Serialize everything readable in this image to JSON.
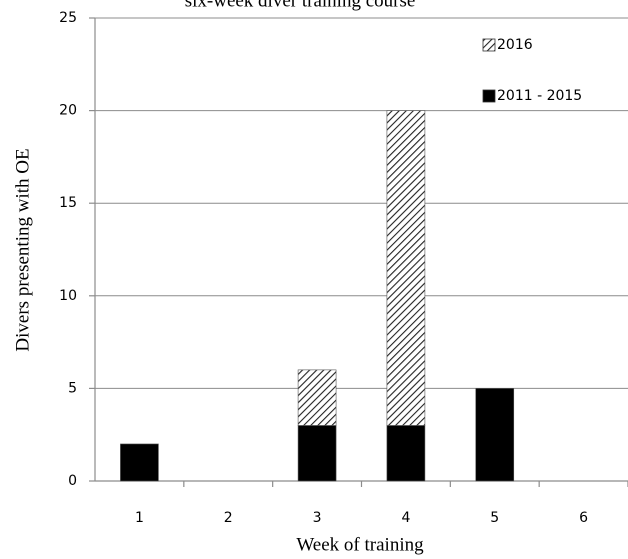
{
  "chart_data": {
    "type": "stacked_bar",
    "title": "six-week diver training course",
    "x_label": "Week of training",
    "y_label": "Divers presenting with OE",
    "categories": [
      "1",
      "2",
      "3",
      "4",
      "5",
      "6"
    ],
    "series": [
      {
        "name": "2011 - 2015",
        "color": "#000000",
        "values": [
          2,
          0,
          3,
          3,
          5,
          0
        ]
      },
      {
        "name": "2016",
        "color": "#000000",
        "pattern": "diagonal-hatch",
        "values": [
          0,
          0,
          3,
          17,
          0,
          0
        ]
      }
    ],
    "ylim": [
      0,
      25
    ],
    "yticks": [
      0,
      5,
      10,
      15,
      20,
      25
    ],
    "grid": true,
    "legend": "upper right"
  }
}
